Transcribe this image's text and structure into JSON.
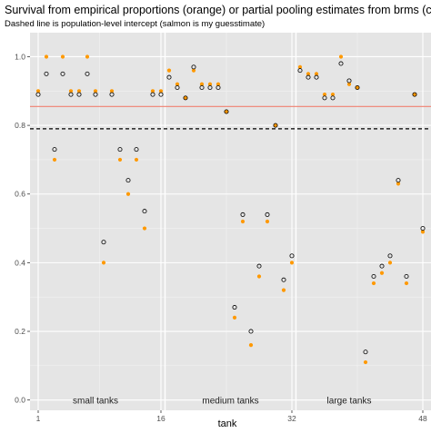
{
  "chart_data": {
    "type": "scatter",
    "title": "Survival from empirical proportions (orange) or partial pooling estimates from brms (circles)",
    "subtitle": "Dashed line is population-level intercept (salmon is my guesstimate)",
    "xlabel": "tank",
    "ylabel": "",
    "xlim": [
      0,
      49
    ],
    "ylim": [
      -0.03,
      1.07
    ],
    "x_ticks": [
      1,
      16,
      32,
      48
    ],
    "y_ticks": [
      0.0,
      0.2,
      0.4,
      0.6,
      0.8,
      1.0
    ],
    "y_tick_labels": [
      "0.0",
      "0.2",
      "0.4",
      "0.6",
      "0.8",
      "1.0"
    ],
    "grid": true,
    "background": "#e5e5e5",
    "colors": {
      "empirical": "#ff9900",
      "estimate": "#000000",
      "guess_line": "#f08070",
      "intercept_line": "#000000",
      "divider": "#ffffff"
    },
    "reference_lines": {
      "guesstimate": 0.855,
      "intercept": 0.79
    },
    "group_dividers": [
      16.5,
      32.5
    ],
    "annotations": [
      {
        "text": "small tanks",
        "x": 8,
        "y": 0.0
      },
      {
        "text": "medium tanks",
        "x": 24.5,
        "y": 0.0
      },
      {
        "text": "large tanks",
        "x": 39,
        "y": 0.0
      }
    ],
    "series": [
      {
        "name": "empirical",
        "x": [
          1,
          2,
          3,
          4,
          5,
          6,
          7,
          8,
          9,
          10,
          11,
          12,
          13,
          14,
          15,
          16,
          17,
          18,
          19,
          20,
          21,
          22,
          23,
          24,
          25,
          26,
          27,
          28,
          29,
          30,
          31,
          32,
          33,
          34,
          35,
          36,
          37,
          38,
          39,
          40,
          41,
          42,
          43,
          44,
          45,
          46,
          47,
          48
        ],
        "y": [
          0.9,
          1.0,
          0.7,
          1.0,
          0.9,
          0.9,
          1.0,
          0.9,
          0.4,
          0.9,
          0.7,
          0.6,
          0.7,
          0.5,
          0.9,
          0.9,
          0.96,
          0.92,
          0.88,
          0.96,
          0.92,
          0.92,
          0.92,
          0.84,
          0.24,
          0.52,
          0.16,
          0.36,
          0.52,
          0.8,
          0.32,
          0.4,
          0.97,
          0.95,
          0.95,
          0.89,
          0.89,
          1.0,
          0.92,
          0.91,
          0.11,
          0.34,
          0.37,
          0.4,
          0.63,
          0.34,
          0.89,
          0.49
        ]
      },
      {
        "name": "estimate",
        "x": [
          1,
          2,
          3,
          4,
          5,
          6,
          7,
          8,
          9,
          10,
          11,
          12,
          13,
          14,
          15,
          16,
          17,
          18,
          19,
          20,
          21,
          22,
          23,
          24,
          25,
          26,
          27,
          28,
          29,
          30,
          31,
          32,
          33,
          34,
          35,
          36,
          37,
          38,
          39,
          40,
          41,
          42,
          43,
          44,
          45,
          46,
          47,
          48
        ],
        "y": [
          0.89,
          0.95,
          0.73,
          0.95,
          0.89,
          0.89,
          0.95,
          0.89,
          0.46,
          0.89,
          0.73,
          0.64,
          0.73,
          0.55,
          0.89,
          0.89,
          0.94,
          0.91,
          0.88,
          0.97,
          0.91,
          0.91,
          0.91,
          0.84,
          0.27,
          0.54,
          0.2,
          0.39,
          0.54,
          0.8,
          0.35,
          0.42,
          0.96,
          0.94,
          0.94,
          0.88,
          0.88,
          0.98,
          0.93,
          0.91,
          0.14,
          0.36,
          0.39,
          0.42,
          0.64,
          0.36,
          0.89,
          0.5
        ]
      }
    ]
  }
}
